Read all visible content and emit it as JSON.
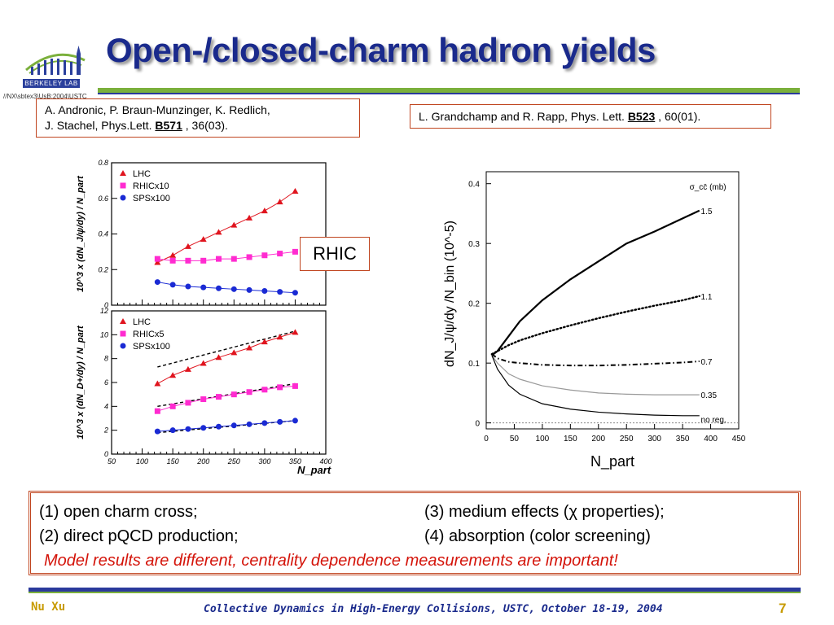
{
  "header": {
    "title": "Open-/closed-charm hadron yields",
    "logo_text": "BERKELEY LAB",
    "logo_url": "//NX\\sbtex3\\UsB:2004\\USTC"
  },
  "refs": {
    "left_line1": "A. Andronic, P. Braun-Munzinger, K. Redlich,",
    "left_line2_pre": "J. Stachel, Phys.Lett. ",
    "left_vol": "B571",
    "left_line2_post": " , 36(03).",
    "right_pre": "L. Grandchamp and R. Rapp, Phys. Lett. ",
    "right_vol": "B523",
    "right_post": " , 60(01)."
  },
  "rhic_label": "RHIC",
  "colors": {
    "title": "#1a2a8c",
    "accent_green": "#7bb03c",
    "box_border": "#c0451f",
    "lhc": "#e0141e",
    "rhic": "#ff2bd0",
    "sps": "#1a2ad4",
    "conclusion": "#d4140a",
    "footer_gold": "#c79a00"
  },
  "chart_data": [
    {
      "type": "scatter",
      "panel": "top-left",
      "ylabel": "10^3 x (dN_J/ψ/dy) / N_part",
      "ylim": [
        0,
        0.8
      ],
      "yticks": [
        "0",
        "0.2",
        "0.4",
        "0.6",
        "0.8"
      ],
      "xlim": [
        50,
        400
      ],
      "legend": [
        "LHC",
        "RHICx10",
        "SPSx100"
      ],
      "series": [
        {
          "name": "LHC",
          "x": [
            125,
            150,
            175,
            200,
            225,
            250,
            275,
            300,
            325,
            350
          ],
          "y": [
            0.24,
            0.28,
            0.33,
            0.37,
            0.41,
            0.45,
            0.49,
            0.53,
            0.58,
            0.64
          ]
        },
        {
          "name": "RHICx10",
          "x": [
            125,
            150,
            175,
            200,
            225,
            250,
            275,
            300,
            325,
            350
          ],
          "y": [
            0.26,
            0.25,
            0.25,
            0.25,
            0.26,
            0.26,
            0.27,
            0.28,
            0.29,
            0.3
          ]
        },
        {
          "name": "SPSx100",
          "x": [
            125,
            150,
            175,
            200,
            225,
            250,
            275,
            300,
            325,
            350
          ],
          "y": [
            0.13,
            0.115,
            0.105,
            0.1,
            0.095,
            0.09,
            0.085,
            0.08,
            0.075,
            0.07
          ]
        }
      ]
    },
    {
      "type": "scatter",
      "panel": "bottom-left",
      "ylabel": "10^3 x (dN_D+/dy) / N_part",
      "xlabel": "N_part",
      "ylim": [
        0,
        12
      ],
      "yticks": [
        "0",
        "2",
        "4",
        "6",
        "8",
        "10",
        "12"
      ],
      "xlim": [
        50,
        400
      ],
      "xticks": [
        "50",
        "100",
        "150",
        "200",
        "250",
        "300",
        "350",
        "400"
      ],
      "legend": [
        "LHC",
        "RHICx5",
        "SPSx100"
      ],
      "series": [
        {
          "name": "LHC",
          "x": [
            125,
            150,
            175,
            200,
            225,
            250,
            275,
            300,
            325,
            350
          ],
          "y": [
            5.9,
            6.6,
            7.1,
            7.6,
            8.1,
            8.5,
            8.9,
            9.4,
            9.8,
            10.2
          ]
        },
        {
          "name": "RHICx5",
          "x": [
            125,
            150,
            175,
            200,
            225,
            250,
            275,
            300,
            325,
            350
          ],
          "y": [
            3.6,
            4.0,
            4.3,
            4.6,
            4.8,
            5.0,
            5.2,
            5.4,
            5.6,
            5.7
          ]
        },
        {
          "name": "SPSx100",
          "x": [
            125,
            150,
            175,
            200,
            225,
            250,
            275,
            300,
            325,
            350
          ],
          "y": [
            1.9,
            2.0,
            2.1,
            2.2,
            2.3,
            2.4,
            2.5,
            2.6,
            2.7,
            2.8
          ]
        }
      ],
      "dashed": [
        {
          "x": [
            125,
            350
          ],
          "y": [
            7.3,
            10.3
          ]
        },
        {
          "x": [
            125,
            350
          ],
          "y": [
            4.0,
            5.9
          ]
        },
        {
          "x": [
            125,
            350
          ],
          "y": [
            1.8,
            2.8
          ]
        }
      ]
    },
    {
      "type": "line",
      "panel": "right",
      "xlabel": "N_part",
      "ylabel": "dN_J/ψ/dy /N_bin (10^-5)",
      "xlim": [
        0,
        450
      ],
      "ylim": [
        -0.01,
        0.42
      ],
      "xticks": [
        "0",
        "50",
        "100",
        "150",
        "200",
        "250",
        "300",
        "350",
        "400",
        "450"
      ],
      "yticks": [
        "0",
        "0.1",
        "0.2",
        "0.3",
        "0.4"
      ],
      "legend_title": "σ_cc̄ (mb)",
      "series": [
        {
          "name": "1.5",
          "x": [
            10,
            20,
            40,
            60,
            100,
            150,
            200,
            250,
            300,
            350,
            380
          ],
          "y": [
            0.113,
            0.12,
            0.145,
            0.17,
            0.205,
            0.24,
            0.27,
            0.3,
            0.32,
            0.342,
            0.355
          ]
        },
        {
          "name": "1.1",
          "x": [
            10,
            20,
            40,
            60,
            100,
            150,
            200,
            250,
            300,
            350,
            380
          ],
          "y": [
            0.115,
            0.12,
            0.13,
            0.138,
            0.15,
            0.163,
            0.175,
            0.186,
            0.196,
            0.205,
            0.212
          ]
        },
        {
          "name": "0.7",
          "x": [
            10,
            20,
            40,
            60,
            100,
            150,
            200,
            250,
            300,
            350,
            380
          ],
          "y": [
            0.115,
            0.108,
            0.102,
            0.1,
            0.097,
            0.096,
            0.096,
            0.097,
            0.099,
            0.101,
            0.103
          ]
        },
        {
          "name": "0.35",
          "x": [
            10,
            20,
            40,
            60,
            100,
            150,
            200,
            250,
            300,
            350,
            380
          ],
          "y": [
            0.113,
            0.1,
            0.082,
            0.073,
            0.062,
            0.055,
            0.05,
            0.048,
            0.047,
            0.047,
            0.047
          ]
        },
        {
          "name": "no reg.",
          "x": [
            10,
            20,
            40,
            60,
            100,
            150,
            200,
            250,
            300,
            350,
            380
          ],
          "y": [
            0.113,
            0.09,
            0.063,
            0.048,
            0.032,
            0.023,
            0.018,
            0.015,
            0.013,
            0.012,
            0.012
          ]
        }
      ]
    }
  ],
  "summary": {
    "item1": "(1) open charm cross;",
    "item2": "(2) direct pQCD production;",
    "item3": "(3) medium effects (χ properties);",
    "item4": "(4) absorption (color screening)",
    "conclusion": "Model results are different, centrality dependence measurements are important!"
  },
  "footer": {
    "author": "Nu Xu",
    "conference": "Collective Dynamics in High-Energy Collisions, USTC, October 18-19, 2004",
    "page": "7"
  }
}
